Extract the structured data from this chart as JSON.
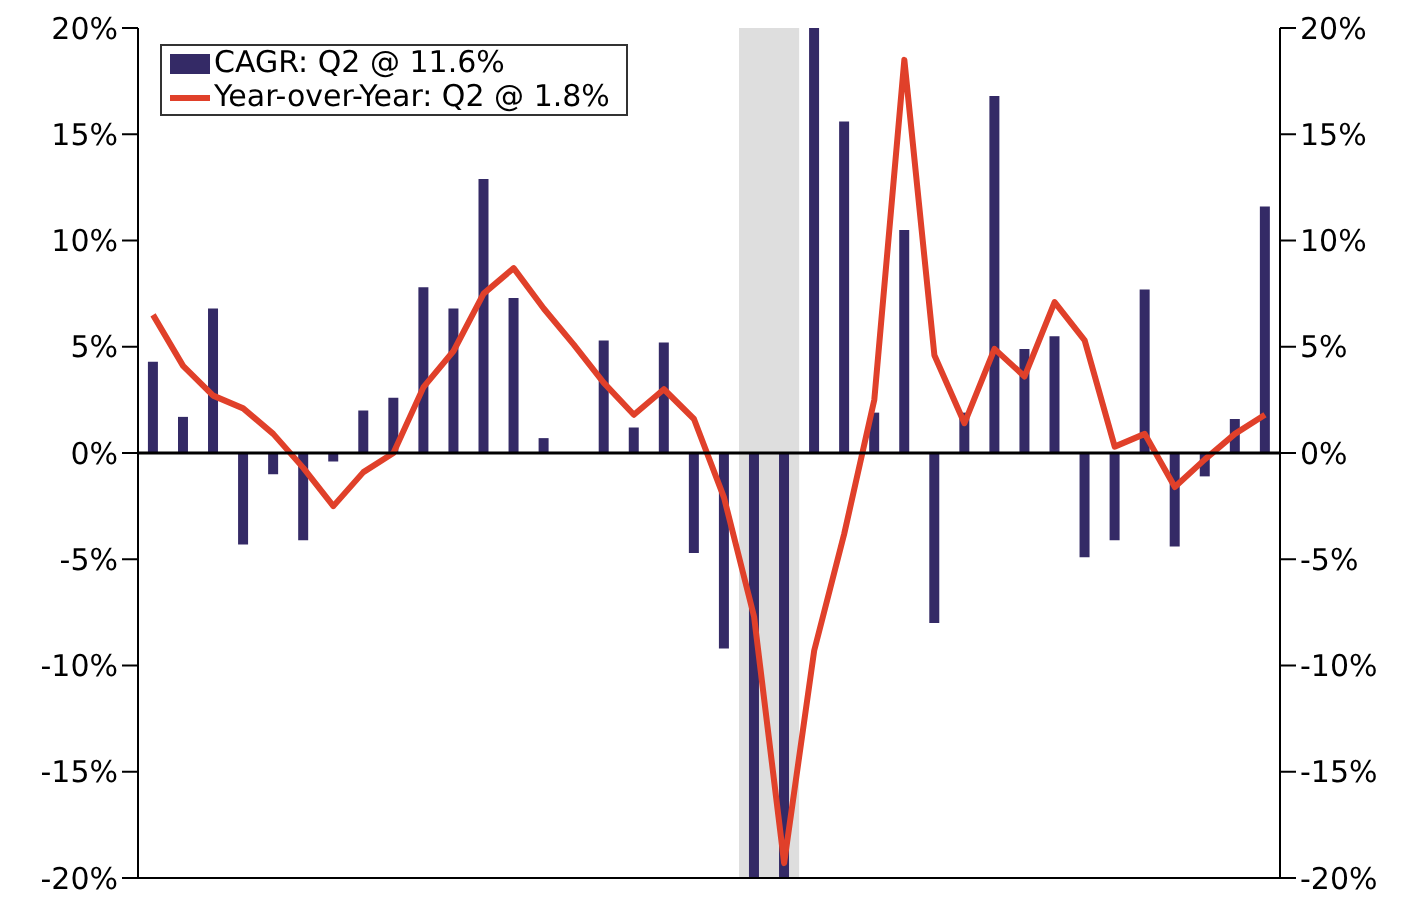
{
  "chart_data": {
    "type": "bar",
    "categories": [
      null,
      null,
      null,
      null,
      null,
      null,
      null,
      null,
      null,
      null,
      null,
      null,
      null,
      null,
      null,
      null,
      null,
      null,
      null,
      null,
      null,
      null,
      null,
      null,
      null,
      null,
      null,
      null,
      null,
      null,
      null,
      null,
      null,
      null,
      null,
      null,
      null,
      null
    ],
    "series": [
      {
        "name": "CAGR: Q2 @ 11.6%",
        "color": "#342a66",
        "values": [
          4.3,
          1.7,
          6.8,
          -4.3,
          -1.0,
          -4.1,
          -0.4,
          2.0,
          2.6,
          7.8,
          6.8,
          12.9,
          7.3,
          0.7,
          null,
          5.3,
          1.2,
          5.2,
          -4.7,
          -9.2,
          -20,
          -20,
          20,
          15.6,
          1.9,
          10.5,
          -8.0,
          1.9,
          16.8,
          4.9,
          5.5,
          -4.9,
          -4.1,
          7.7,
          -4.4,
          -1.1,
          1.6,
          11.6
        ]
      },
      {
        "name": "Year-over-Year: Q2 @ 1.8%",
        "type": "line",
        "color": "#e0402a",
        "marker": "none",
        "values": [
          6.5,
          4.1,
          2.7,
          2.1,
          0.9,
          -0.7,
          -2.5,
          -0.9,
          0.0,
          3.1,
          4.8,
          7.5,
          8.7,
          6.8,
          5.1,
          3.3,
          1.8,
          3.0,
          1.6,
          -2.1,
          -7.7,
          -19.3,
          -9.3,
          -3.8,
          2.5,
          18.5,
          4.6,
          1.4,
          4.9,
          3.6,
          7.1,
          5.3,
          0.3,
          0.9,
          -1.6,
          -0.3,
          0.9,
          1.8
        ]
      }
    ],
    "ylim": [
      -20,
      20
    ],
    "yticks": [
      {
        "value": -20,
        "label": "-20%"
      },
      {
        "value": -15,
        "label": "-15%"
      },
      {
        "value": -10,
        "label": "-10%"
      },
      {
        "value": -5,
        "label": "-5%"
      },
      {
        "value": 0,
        "label": "0%"
      },
      {
        "value": 5,
        "label": "5%"
      },
      {
        "value": 10,
        "label": "10%"
      },
      {
        "value": 15,
        "label": "15%"
      },
      {
        "value": 20,
        "label": "20%"
      }
    ],
    "y2lim": [
      -20,
      20
    ],
    "y2ticks": [
      {
        "value": -20,
        "label": "-20%"
      },
      {
        "value": -15,
        "label": "-15%"
      },
      {
        "value": -10,
        "label": "-10%"
      },
      {
        "value": -5,
        "label": "-5%"
      },
      {
        "value": 0,
        "label": "0%"
      },
      {
        "value": 5,
        "label": "5%"
      },
      {
        "value": 10,
        "label": "10%"
      },
      {
        "value": 15,
        "label": "15%"
      },
      {
        "value": 20,
        "label": "20%"
      }
    ],
    "tick_labels": "y",
    "ref_lines": [
      {
        "axis": "y",
        "value": 0,
        "color": "#000000"
      }
    ],
    "legend": "top left"
  }
}
